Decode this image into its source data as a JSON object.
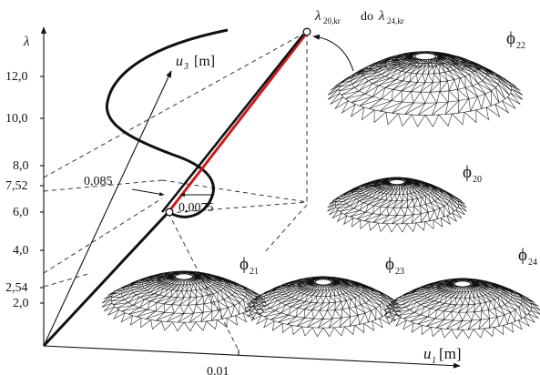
{
  "axes": {
    "lambda_symbol": "λ",
    "u3_symbol": "u",
    "u3_sub": "3",
    "u3_unit": "[m]",
    "u1_symbol": "u",
    "u1_sub": "1",
    "u1_unit": "[m]"
  },
  "lambda_ticks": [
    "12,0",
    "10,0",
    "8,0",
    "7,52",
    "6,0",
    "4,0",
    "2,54",
    "2,0"
  ],
  "annotations": {
    "u3_value": "0,085",
    "u1_value_small": "0,0075",
    "u1_value": "0,01",
    "critical_lambda_a": "λ",
    "critical_lambda_a_sub": "20,kr",
    "critical_do": "do",
    "critical_lambda_b": "λ",
    "critical_lambda_b_sub": "24,kr"
  },
  "mode_labels": [
    {
      "phi": "ϕ",
      "sub": "22"
    },
    {
      "phi": "ϕ",
      "sub": "20"
    },
    {
      "phi": "ϕ",
      "sub": "21"
    },
    {
      "phi": "ϕ",
      "sub": "23"
    },
    {
      "phi": "ϕ",
      "sub": "24"
    }
  ],
  "colors": {
    "curve": "#111111",
    "highlight": "#cc1a1a"
  }
}
